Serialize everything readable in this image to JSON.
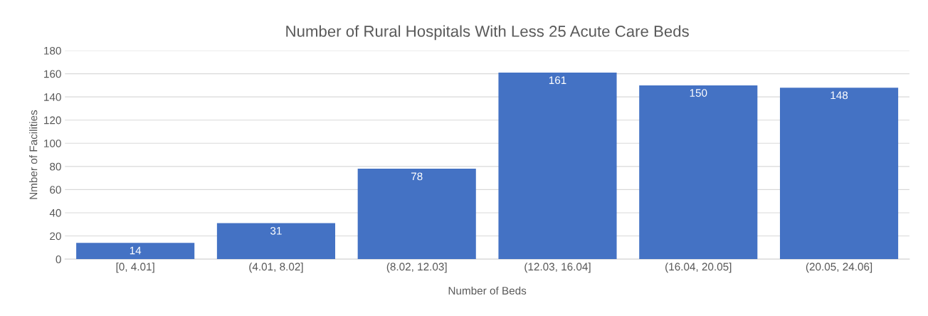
{
  "chart_data": {
    "type": "bar",
    "title": "Number of Rural Hospitals With Less 25 Acute Care Beds",
    "xlabel": "Number of Beds",
    "ylabel": "Nmber of Facilities",
    "categories": [
      "[0, 4.01]",
      "(4.01, 8.02]",
      "(8.02, 12.03]",
      "(12.03, 16.04]",
      "(16.04, 20.05]",
      "(20.05, 24.06]"
    ],
    "values": [
      14,
      31,
      78,
      161,
      150,
      148
    ],
    "color": "#4472c4",
    "ylim": [
      0,
      180
    ],
    "yticks": [
      0,
      20,
      40,
      60,
      80,
      100,
      120,
      140,
      160,
      180
    ],
    "grid": "y",
    "data_labels": true
  }
}
